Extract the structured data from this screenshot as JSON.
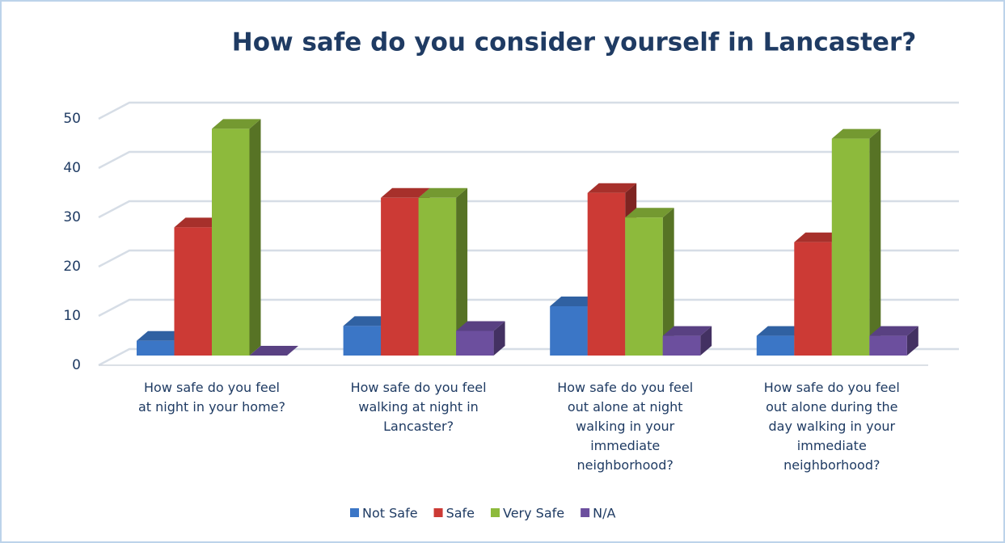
{
  "chart_data": {
    "type": "bar3d",
    "title": "How safe do you consider yourself in Lancaster?",
    "categories": [
      "How safe do you feel at night in your home?",
      "How safe do you feel walking at night in Lancaster?",
      "How safe do you feel out alone at night walking in your immediate neighborhood?",
      "How safe do you feel out alone during the day walking in your immediate neighborhood?"
    ],
    "series": [
      {
        "name": "Not Safe",
        "color": "#3b76c6",
        "values": [
          3,
          6,
          10,
          4
        ]
      },
      {
        "name": "Safe",
        "color": "#cc3a35",
        "values": [
          26,
          32,
          33,
          23
        ]
      },
      {
        "name": "Very Safe",
        "color": "#8dba3c",
        "values": [
          46,
          32,
          28,
          44
        ]
      },
      {
        "name": "N/A",
        "color": "#6c4f9e",
        "values": [
          0,
          5,
          4,
          4
        ]
      }
    ],
    "ylim": [
      0,
      50
    ],
    "yticks": [
      0,
      10,
      20,
      30,
      40,
      50
    ],
    "grid": true,
    "legend": "bottom"
  }
}
